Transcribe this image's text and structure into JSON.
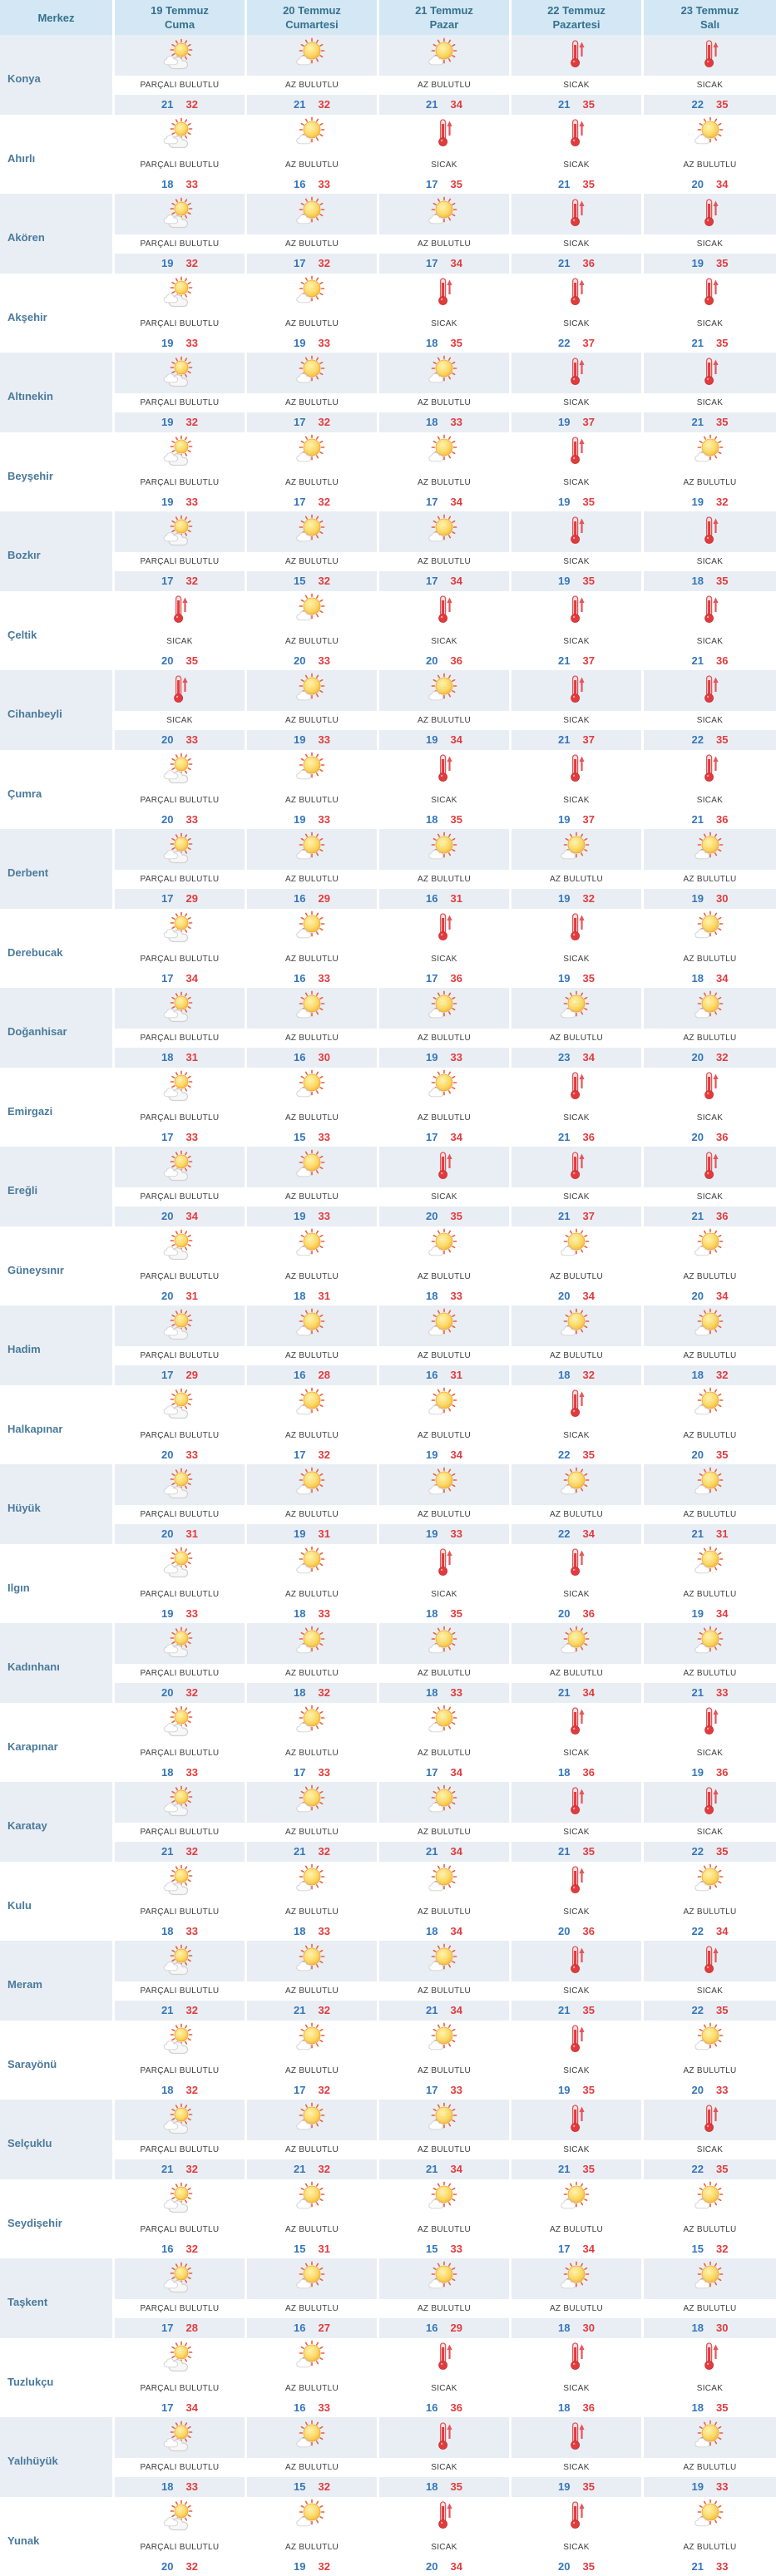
{
  "header": {
    "merkez": "Merkez",
    "days": [
      {
        "date": "19 Temmuz",
        "day": "Cuma"
      },
      {
        "date": "20 Temmuz",
        "day": "Cumartesi"
      },
      {
        "date": "21 Temmuz",
        "day": "Pazar"
      },
      {
        "date": "22 Temmuz",
        "day": "Pazartesi"
      },
      {
        "date": "23 Temmuz",
        "day": "Salı"
      }
    ]
  },
  "conditions": {
    "pb": {
      "label": "PARÇALI BULUTLU",
      "icon": "sun-behind-cloud"
    },
    "ab": {
      "label": "AZ BULUTLU",
      "icon": "sun-with-small-cloud"
    },
    "hot": {
      "label": "SICAK",
      "icon": "hot-thermometer"
    }
  },
  "colors": {
    "header_bg": "#d3e8f4",
    "header_text": "#35708e",
    "district_text": "#4a7a9b",
    "row_stripe_bg": "#e9eef4",
    "condition_text": "#3c3c3c",
    "min_temp": "#3576b9",
    "max_temp": "#e23b3d"
  },
  "rows": [
    {
      "name": "Konya",
      "cells": [
        [
          "pb",
          21,
          32
        ],
        [
          "ab",
          21,
          32
        ],
        [
          "ab",
          21,
          34
        ],
        [
          "hot",
          21,
          35
        ],
        [
          "hot",
          22,
          35
        ]
      ]
    },
    {
      "name": "Ahırlı",
      "cells": [
        [
          "pb",
          18,
          33
        ],
        [
          "ab",
          16,
          33
        ],
        [
          "hot",
          17,
          35
        ],
        [
          "hot",
          21,
          35
        ],
        [
          "ab",
          20,
          34
        ]
      ]
    },
    {
      "name": "Akören",
      "cells": [
        [
          "pb",
          19,
          32
        ],
        [
          "ab",
          17,
          32
        ],
        [
          "ab",
          17,
          34
        ],
        [
          "hot",
          21,
          36
        ],
        [
          "hot",
          19,
          35
        ]
      ]
    },
    {
      "name": "Akşehir",
      "cells": [
        [
          "pb",
          19,
          33
        ],
        [
          "ab",
          19,
          33
        ],
        [
          "hot",
          18,
          35
        ],
        [
          "hot",
          22,
          37
        ],
        [
          "hot",
          21,
          35
        ]
      ]
    },
    {
      "name": "Altınekin",
      "cells": [
        [
          "pb",
          19,
          32
        ],
        [
          "ab",
          17,
          32
        ],
        [
          "ab",
          18,
          33
        ],
        [
          "hot",
          19,
          37
        ],
        [
          "hot",
          21,
          35
        ]
      ]
    },
    {
      "name": "Beyşehir",
      "cells": [
        [
          "pb",
          19,
          33
        ],
        [
          "ab",
          17,
          32
        ],
        [
          "ab",
          17,
          34
        ],
        [
          "hot",
          19,
          35
        ],
        [
          "ab",
          19,
          32
        ]
      ]
    },
    {
      "name": "Bozkır",
      "cells": [
        [
          "pb",
          17,
          32
        ],
        [
          "ab",
          15,
          32
        ],
        [
          "ab",
          17,
          34
        ],
        [
          "hot",
          19,
          35
        ],
        [
          "hot",
          18,
          35
        ]
      ]
    },
    {
      "name": "Çeltik",
      "cells": [
        [
          "hot",
          20,
          35
        ],
        [
          "ab",
          20,
          33
        ],
        [
          "hot",
          20,
          36
        ],
        [
          "hot",
          21,
          37
        ],
        [
          "hot",
          21,
          36
        ]
      ]
    },
    {
      "name": "Cihanbeyli",
      "cells": [
        [
          "hot",
          20,
          33
        ],
        [
          "ab",
          19,
          33
        ],
        [
          "ab",
          19,
          34
        ],
        [
          "hot",
          21,
          37
        ],
        [
          "hot",
          22,
          35
        ]
      ]
    },
    {
      "name": "Çumra",
      "cells": [
        [
          "pb",
          20,
          33
        ],
        [
          "ab",
          19,
          33
        ],
        [
          "hot",
          18,
          35
        ],
        [
          "hot",
          19,
          37
        ],
        [
          "hot",
          21,
          36
        ]
      ]
    },
    {
      "name": "Derbent",
      "cells": [
        [
          "pb",
          17,
          29
        ],
        [
          "ab",
          16,
          29
        ],
        [
          "ab",
          16,
          31
        ],
        [
          "ab",
          19,
          32
        ],
        [
          "ab",
          19,
          30
        ]
      ]
    },
    {
      "name": "Derebucak",
      "cells": [
        [
          "pb",
          17,
          34
        ],
        [
          "ab",
          16,
          33
        ],
        [
          "hot",
          17,
          36
        ],
        [
          "hot",
          19,
          35
        ],
        [
          "ab",
          18,
          34
        ]
      ]
    },
    {
      "name": "Doğanhisar",
      "cells": [
        [
          "pb",
          18,
          31
        ],
        [
          "ab",
          16,
          30
        ],
        [
          "ab",
          19,
          33
        ],
        [
          "ab",
          23,
          34
        ],
        [
          "ab",
          20,
          32
        ]
      ]
    },
    {
      "name": "Emirgazi",
      "cells": [
        [
          "pb",
          17,
          33
        ],
        [
          "ab",
          15,
          33
        ],
        [
          "ab",
          17,
          34
        ],
        [
          "hot",
          21,
          36
        ],
        [
          "hot",
          20,
          36
        ]
      ]
    },
    {
      "name": "Ereğli",
      "cells": [
        [
          "pb",
          20,
          34
        ],
        [
          "ab",
          19,
          33
        ],
        [
          "hot",
          20,
          35
        ],
        [
          "hot",
          21,
          37
        ],
        [
          "hot",
          21,
          36
        ]
      ]
    },
    {
      "name": "Güneysınır",
      "cells": [
        [
          "pb",
          20,
          31
        ],
        [
          "ab",
          18,
          31
        ],
        [
          "ab",
          18,
          33
        ],
        [
          "ab",
          20,
          34
        ],
        [
          "ab",
          20,
          34
        ]
      ]
    },
    {
      "name": "Hadim",
      "cells": [
        [
          "pb",
          17,
          29
        ],
        [
          "ab",
          16,
          28
        ],
        [
          "ab",
          16,
          31
        ],
        [
          "ab",
          18,
          32
        ],
        [
          "ab",
          18,
          32
        ]
      ]
    },
    {
      "name": "Halkapınar",
      "cells": [
        [
          "pb",
          20,
          33
        ],
        [
          "ab",
          17,
          32
        ],
        [
          "ab",
          19,
          34
        ],
        [
          "hot",
          22,
          35
        ],
        [
          "ab",
          20,
          35
        ]
      ]
    },
    {
      "name": "Hüyük",
      "cells": [
        [
          "pb",
          20,
          31
        ],
        [
          "ab",
          19,
          31
        ],
        [
          "ab",
          19,
          33
        ],
        [
          "ab",
          22,
          34
        ],
        [
          "ab",
          21,
          31
        ]
      ]
    },
    {
      "name": "Ilgın",
      "cells": [
        [
          "pb",
          19,
          33
        ],
        [
          "ab",
          18,
          33
        ],
        [
          "hot",
          18,
          35
        ],
        [
          "hot",
          20,
          36
        ],
        [
          "ab",
          19,
          34
        ]
      ]
    },
    {
      "name": "Kadınhanı",
      "cells": [
        [
          "pb",
          20,
          32
        ],
        [
          "ab",
          18,
          32
        ],
        [
          "ab",
          18,
          33
        ],
        [
          "ab",
          21,
          34
        ],
        [
          "ab",
          21,
          33
        ]
      ]
    },
    {
      "name": "Karapınar",
      "cells": [
        [
          "pb",
          18,
          33
        ],
        [
          "ab",
          17,
          33
        ],
        [
          "ab",
          17,
          34
        ],
        [
          "hot",
          18,
          36
        ],
        [
          "hot",
          19,
          36
        ]
      ]
    },
    {
      "name": "Karatay",
      "cells": [
        [
          "pb",
          21,
          32
        ],
        [
          "ab",
          21,
          32
        ],
        [
          "ab",
          21,
          34
        ],
        [
          "hot",
          21,
          35
        ],
        [
          "hot",
          22,
          35
        ]
      ]
    },
    {
      "name": "Kulu",
      "cells": [
        [
          "pb",
          18,
          33
        ],
        [
          "ab",
          18,
          33
        ],
        [
          "ab",
          18,
          34
        ],
        [
          "hot",
          20,
          36
        ],
        [
          "ab",
          22,
          34
        ]
      ]
    },
    {
      "name": "Meram",
      "cells": [
        [
          "pb",
          21,
          32
        ],
        [
          "ab",
          21,
          32
        ],
        [
          "ab",
          21,
          34
        ],
        [
          "hot",
          21,
          35
        ],
        [
          "hot",
          22,
          35
        ]
      ]
    },
    {
      "name": "Sarayönü",
      "cells": [
        [
          "pb",
          18,
          32
        ],
        [
          "ab",
          17,
          32
        ],
        [
          "ab",
          17,
          33
        ],
        [
          "hot",
          19,
          35
        ],
        [
          "ab",
          20,
          33
        ]
      ]
    },
    {
      "name": "Selçuklu",
      "cells": [
        [
          "pb",
          21,
          32
        ],
        [
          "ab",
          21,
          32
        ],
        [
          "ab",
          21,
          34
        ],
        [
          "hot",
          21,
          35
        ],
        [
          "hot",
          22,
          35
        ]
      ]
    },
    {
      "name": "Seydişehir",
      "cells": [
        [
          "pb",
          16,
          32
        ],
        [
          "ab",
          15,
          31
        ],
        [
          "ab",
          15,
          33
        ],
        [
          "ab",
          17,
          34
        ],
        [
          "ab",
          15,
          32
        ]
      ]
    },
    {
      "name": "Taşkent",
      "cells": [
        [
          "pb",
          17,
          28
        ],
        [
          "ab",
          16,
          27
        ],
        [
          "ab",
          16,
          29
        ],
        [
          "ab",
          18,
          30
        ],
        [
          "ab",
          18,
          30
        ]
      ]
    },
    {
      "name": "Tuzlukçu",
      "cells": [
        [
          "pb",
          17,
          34
        ],
        [
          "ab",
          16,
          33
        ],
        [
          "hot",
          16,
          36
        ],
        [
          "hot",
          18,
          36
        ],
        [
          "hot",
          18,
          35
        ]
      ]
    },
    {
      "name": "Yalıhüyük",
      "cells": [
        [
          "pb",
          18,
          33
        ],
        [
          "ab",
          15,
          32
        ],
        [
          "hot",
          18,
          35
        ],
        [
          "hot",
          19,
          35
        ],
        [
          "ab",
          19,
          33
        ]
      ]
    },
    {
      "name": "Yunak",
      "cells": [
        [
          "pb",
          20,
          32
        ],
        [
          "ab",
          19,
          32
        ],
        [
          "hot",
          20,
          34
        ],
        [
          "hot",
          20,
          35
        ],
        [
          "ab",
          21,
          33
        ]
      ]
    }
  ]
}
